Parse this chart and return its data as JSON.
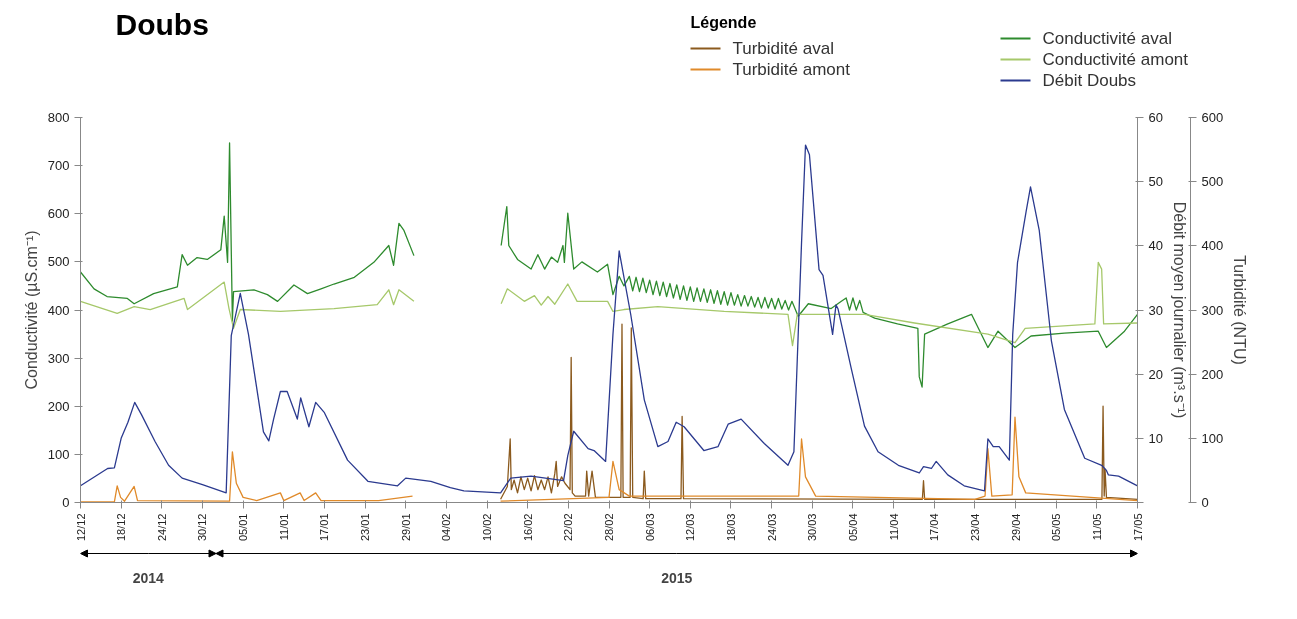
{
  "chart_data": {
    "type": "line",
    "title": "Doubs",
    "legend_title": "Légende",
    "ylabel": "Conductivité (µS.cm⁻¹)",
    "y2label": "Débit moyen journalier (m³.s⁻¹)",
    "y3label": "Turbidité (NTU)",
    "xlim": [
      "2014-12-12",
      "2015-05-17"
    ],
    "xticks": [
      {
        "value": "2014-12-12",
        "label": "12/12"
      },
      {
        "value": "2014-12-18",
        "label": "18/12"
      },
      {
        "value": "2014-12-24",
        "label": "24/12"
      },
      {
        "value": "2014-12-30",
        "label": "30/12"
      },
      {
        "value": "2015-01-05",
        "label": "05/01"
      },
      {
        "value": "2015-01-11",
        "label": "11/01"
      },
      {
        "value": "2015-01-17",
        "label": "17/01"
      },
      {
        "value": "2015-01-23",
        "label": "23/01"
      },
      {
        "value": "2015-01-29",
        "label": "29/01"
      },
      {
        "value": "2015-02-04",
        "label": "04/02"
      },
      {
        "value": "2015-02-10",
        "label": "10/02"
      },
      {
        "value": "2015-02-16",
        "label": "16/02"
      },
      {
        "value": "2015-02-22",
        "label": "22/02"
      },
      {
        "value": "2015-02-28",
        "label": "28/02"
      },
      {
        "value": "2015-03-06",
        "label": "06/03"
      },
      {
        "value": "2015-03-12",
        "label": "12/03"
      },
      {
        "value": "2015-03-18",
        "label": "18/03"
      },
      {
        "value": "2015-03-24",
        "label": "24/03"
      },
      {
        "value": "2015-03-30",
        "label": "30/03"
      },
      {
        "value": "2015-04-05",
        "label": "05/04"
      },
      {
        "value": "2015-04-11",
        "label": "11/04"
      },
      {
        "value": "2015-04-17",
        "label": "17/04"
      },
      {
        "value": "2015-04-23",
        "label": "23/04"
      },
      {
        "value": "2015-04-29",
        "label": "29/04"
      },
      {
        "value": "2015-05-05",
        "label": "05/05"
      },
      {
        "value": "2015-05-11",
        "label": "11/05"
      },
      {
        "value": "2015-05-17",
        "label": "17/05"
      }
    ],
    "ylim": [
      0,
      800
    ],
    "yticks": [
      0,
      100,
      200,
      300,
      400,
      500,
      600,
      700,
      800
    ],
    "y2lim": [
      0,
      60
    ],
    "y2ticks": [
      {
        "value": 0,
        "label": null
      },
      10,
      20,
      30,
      40,
      50,
      60
    ],
    "y3lim": [
      0,
      600
    ],
    "y3ticks": [
      0,
      100,
      200,
      300,
      400,
      500,
      600
    ],
    "grid": false,
    "legend": "top",
    "marker": "none",
    "line_style": "solid",
    "annotations": [
      "2014",
      "2015"
    ],
    "series": [
      {
        "name": "Turbidité aval",
        "color": "#8b5a1e",
        "axis": "y3",
        "x": [
          "2015-02-12",
          "2015-02-13",
          "2015-02-13T10:00",
          "2015-02-13T14:00",
          "2015-02-14",
          "2015-02-14T12:00",
          "2015-02-15",
          "2015-02-15T12:00",
          "2015-02-16",
          "2015-02-16T12:00",
          "2015-02-17",
          "2015-02-17T12:00",
          "2015-02-18",
          "2015-02-18T12:00",
          "2015-02-19",
          "2015-02-19T12:00",
          "2015-02-20",
          "2015-02-20T05:00",
          "2015-02-20T10:00",
          "2015-02-21",
          "2015-02-21T12:00",
          "2015-02-22T06:00",
          "2015-02-22T10:00",
          "2015-02-22T14:00",
          "2015-02-23",
          "2015-02-24T13:00",
          "2015-02-24T17:00",
          "2015-02-25",
          "2015-02-25T12:00",
          "2015-02-26",
          "2015-03-01T18:00",
          "2015-03-01T22:00",
          "2015-03-02T02:00",
          "2015-03-03T03:00",
          "2015-03-03T07:00",
          "2015-03-03T12:00",
          "2015-03-05T01:00",
          "2015-03-05T05:00",
          "2015-03-05T10:00",
          "2015-03-10T15:00",
          "2015-03-10T19:00",
          "2015-03-11",
          "2015-04-15T06:00",
          "2015-04-15T10:00",
          "2015-04-15T14:00",
          "2015-05-11T18:00",
          "2015-05-11T22:00",
          "2015-05-12T02:00",
          "2015-05-12T05:00",
          "2015-05-12T10:00",
          "2015-05-17"
        ],
        "values": [
          5,
          25,
          99,
          20,
          35,
          15,
          40,
          20,
          38,
          18,
          42,
          20,
          35,
          20,
          40,
          15,
          45,
          64,
          25,
          40,
          30,
          20,
          226,
          15,
          10,
          10,
          49,
          10,
          49,
          8,
          8,
          278,
          8,
          8,
          272,
          8,
          6,
          49,
          6,
          6,
          134,
          6,
          5,
          34,
          5,
          5,
          150,
          10,
          52,
          8,
          5
        ]
      },
      {
        "name": "Turbidité amont",
        "color": "#e08a2a",
        "axis": "y3",
        "x": [
          "2014-12-12",
          "2014-12-17",
          "2014-12-17T10:00",
          "2014-12-17T22:00",
          "2014-12-18T12:00",
          "2014-12-19T22:00",
          "2014-12-20T10:00",
          "2015-01-03",
          "2015-01-03T10:00",
          "2015-01-04",
          "2015-01-05",
          "2015-01-07",
          "2015-01-10T12:00",
          "2015-01-11",
          "2015-01-13T10:00",
          "2015-01-14",
          "2015-01-15T17:00",
          "2015-01-16T12:00",
          "2015-01-25",
          "2015-01-30",
          "2015-02-05",
          "2015-02-12",
          "2015-02-28",
          "2015-02-28T14:00",
          "2015-03-01T12:00",
          "2015-03-03",
          "2015-03-28",
          "2015-03-28T10:00",
          "2015-03-29",
          "2015-03-30T12:00",
          "2015-04-23",
          "2015-04-24T12:00",
          "2015-04-24T22:00",
          "2015-04-25T12:00",
          "2015-04-28T12:00",
          "2015-04-28T22:00",
          "2015-04-29T12:00",
          "2015-04-30T12:00",
          "2015-05-17"
        ],
        "values": [
          1,
          1,
          26,
          8,
          2,
          25,
          3,
          2,
          79,
          30,
          8,
          3,
          15,
          3,
          15,
          3,
          15,
          3,
          3,
          10,
          null,
          2,
          8,
          64,
          20,
          10,
          10,
          99,
          40,
          10,
          5,
          10,
          84,
          10,
          12,
          133,
          40,
          15,
          3
        ]
      },
      {
        "name": "Conductivité aval",
        "color": "#2e8b2e",
        "x": [
          "2014-12-12",
          "2014-12-14",
          "2014-12-15T22:00",
          "2014-12-18T22:00",
          "2014-12-19T22:00",
          "2014-12-22T19:00",
          "2014-12-26T07:00",
          "2014-12-27",
          "2014-12-27T19:00",
          "2014-12-29T05:00",
          "2014-12-30T17:00",
          "2015-01-01T17:00",
          "2015-01-02T05:00",
          "2015-01-02T17:00",
          "2015-01-03",
          "2015-01-03T10:00",
          "2015-01-03T14:00",
          "2015-01-06T14:00",
          "2015-01-08T14:00",
          "2015-01-10T02:00",
          "2015-01-12T12:00",
          "2015-01-14T12:00",
          "2015-01-16T12:00",
          "2015-01-18T10:00",
          "2015-01-21T10:00",
          "2015-01-24T07:00",
          "2015-01-26T12:00",
          "2015-01-27T05:00",
          "2015-01-28",
          "2015-01-28T17:00",
          "2015-01-30T05:00",
          "2015-02-05",
          "2015-02-12T02:00",
          "2015-02-12T22:00",
          "2015-02-13T05:00",
          "2015-02-14T12:00",
          "2015-02-16T12:00",
          "2015-02-17T12:00",
          "2015-02-18T12:00",
          "2015-02-19T12:00",
          "2015-02-20T10:00",
          "2015-02-21T05:00",
          "2015-02-21T10:00",
          "2015-02-21T22:00",
          "2015-02-22T19:00",
          "2015-02-24",
          "2015-02-26T07:00",
          "2015-02-27T19:00",
          "2015-02-28T14:00",
          "2015-03-01T12:00",
          "2015-03-02T05:00",
          "2015-03-03",
          "2015-03-03T12:00",
          "2015-03-04",
          "2015-03-04T12:00",
          "2015-03-05",
          "2015-03-05T12:00",
          "2015-03-06",
          "2015-03-06T12:00",
          "2015-03-07",
          "2015-03-07T12:00",
          "2015-03-08",
          "2015-03-08T12:00",
          "2015-03-09",
          "2015-03-09T12:00",
          "2015-03-10",
          "2015-03-10T12:00",
          "2015-03-11",
          "2015-03-11T12:00",
          "2015-03-12",
          "2015-03-12T12:00",
          "2015-03-13",
          "2015-03-13T12:00",
          "2015-03-14",
          "2015-03-14T12:00",
          "2015-03-15",
          "2015-03-15T12:00",
          "2015-03-16",
          "2015-03-16T12:00",
          "2015-03-17",
          "2015-03-17T12:00",
          "2015-03-18",
          "2015-03-18T12:00",
          "2015-03-19",
          "2015-03-19T12:00",
          "2015-03-20",
          "2015-03-20T12:00",
          "2015-03-21",
          "2015-03-21T12:00",
          "2015-03-22",
          "2015-03-22T12:00",
          "2015-03-23",
          "2015-03-23T12:00",
          "2015-03-24",
          "2015-03-24T12:00",
          "2015-03-25",
          "2015-03-25T12:00",
          "2015-03-26",
          "2015-03-26T12:00",
          "2015-03-27",
          "2015-03-27T22:00",
          "2015-03-29T10:00",
          "2015-04-01T19:00",
          "2015-04-03T07:00",
          "2015-04-04",
          "2015-04-04T12:00",
          "2015-04-05",
          "2015-04-05T12:00",
          "2015-04-06",
          "2015-04-06T12:00",
          "2015-04-08T05:00",
          "2015-04-11T14:00",
          "2015-04-14T14:00",
          "2015-04-14T19:00",
          "2015-04-15T05:00",
          "2015-04-15T14:00",
          "2015-04-19",
          "2015-04-22T12:00",
          "2015-04-24T22:00",
          "2015-04-26T10:00",
          "2015-04-28T22:00",
          "2015-05-01T07:00",
          "2015-05-06T05:00",
          "2015-05-11T05:00",
          "2015-05-12T10:00",
          "2015-05-15T02:00",
          "2015-05-17"
        ],
        "values": [
          479,
          444,
          428,
          424,
          413,
          434,
          448,
          515,
          493,
          509,
          505,
          525,
          595,
          499,
          747,
          377,
          438,
          442,
          432,
          418,
          452,
          434,
          444,
          454,
          468,
          499,
          534,
          493,
          580,
          566,
          513,
          null,
          534,
          615,
          534,
          505,
          485,
          515,
          485,
          510,
          499,
          534,
          499,
          601,
          485,
          500,
          479,
          495,
          432,
          470,
          450,
          470,
          440,
          468,
          438,
          466,
          436,
          462,
          432,
          460,
          430,
          458,
          428,
          455,
          425,
          452,
          422,
          450,
          420,
          448,
          418,
          446,
          418,
          444,
          416,
          442,
          414,
          440,
          412,
          438,
          410,
          436,
          410,
          432,
          408,
          430,
          408,
          428,
          406,
          426,
          404,
          426,
          404,
          424,
          402,
          424,
          402,
          420,
          400,
          418,
          387,
          413,
          403,
          418,
          425,
          400,
          425,
          400,
          420,
          395,
          383,
          371,
          362,
          261,
          240,
          350,
          371,
          391,
          322,
          356,
          322,
          346,
          352,
          356,
          322,
          356,
          391
        ]
      },
      {
        "name": "Conductivité amont",
        "color": "#a6c86a",
        "x": [
          "2014-12-12",
          "2014-12-17T10:00",
          "2014-12-19T22:00",
          "2014-12-22T07:00",
          "2014-12-27T07:00",
          "2014-12-27T19:00",
          "2015-01-02T05:00",
          "2015-01-02T22:00",
          "2015-01-03T14:00",
          "2015-01-04T14:00",
          "2015-01-10T12:00",
          "2015-01-18T10:00",
          "2015-01-24T19:00",
          "2015-01-26T12:00",
          "2015-01-27T05:00",
          "2015-01-28",
          "2015-01-30T05:00",
          "2015-02-05",
          "2015-02-12T02:00",
          "2015-02-13",
          "2015-02-15T12:00",
          "2015-02-17",
          "2015-02-18",
          "2015-02-19",
          "2015-02-20",
          "2015-02-21T22:00",
          "2015-02-23T07:00",
          "2015-02-27T19:00",
          "2015-02-28T14:00",
          "2015-03-02T05:00",
          "2015-03-07T05:00",
          "2015-03-17",
          "2015-03-26T10:00",
          "2015-03-27T02:00",
          "2015-03-27T19:00",
          "2015-04-03T05:00",
          "2015-04-06T17:00",
          "2015-04-14T02:00",
          "2015-04-24T22:00",
          "2015-04-28T22:00",
          "2015-04-30T10:00",
          "2015-05-10T17:00",
          "2015-05-11T05:00",
          "2015-05-11T17:00",
          "2015-05-12",
          "2015-05-17"
        ],
        "values": [
          418,
          393,
          407,
          401,
          424,
          401,
          458,
          403,
          362,
          401,
          397,
          403,
          411,
          442,
          411,
          442,
          418,
          null,
          413,
          444,
          418,
          430,
          410,
          428,
          412,
          454,
          418,
          418,
          397,
          401,
          407,
          397,
          391,
          326,
          391,
          391,
          391,
          373,
          350,
          332,
          362,
          371,
          499,
          485,
          371,
          373
        ]
      },
      {
        "name": "Débit Doubs",
        "color": "#2b3a8f",
        "axis": "y2",
        "x": [
          "2014-12-12",
          "2014-12-16",
          "2014-12-17",
          "2014-12-18",
          "2014-12-19",
          "2014-12-20",
          "2014-12-21",
          "2014-12-23",
          "2014-12-25",
          "2014-12-27",
          "2014-12-30",
          "2015-01-02T12:00",
          "2015-01-03T06:00",
          "2015-01-04T14:00",
          "2015-01-05T19:00",
          "2015-01-08",
          "2015-01-08T19:00",
          "2015-01-09T12:00",
          "2015-01-10T12:00",
          "2015-01-11T12:00",
          "2015-01-13",
          "2015-01-13T12:00",
          "2015-01-14T17:00",
          "2015-01-15T17:00",
          "2015-01-17",
          "2015-01-20T10:00",
          "2015-01-23T10:00",
          "2015-01-27T19:00",
          "2015-01-29",
          "2015-02-01T17:00",
          "2015-02-04T14:00",
          "2015-02-06T14:00",
          "2015-02-12",
          "2015-02-13T12:00",
          "2015-02-16T12:00",
          "2015-02-21T07:00",
          "2015-02-21T22:00",
          "2015-02-22T19:00",
          "2015-02-24T22:00",
          "2015-02-25T19:00",
          "2015-02-27T12:00",
          "2015-02-28T14:00",
          "2015-03-01T12:00",
          "2015-03-03T05:00",
          "2015-03-05T05:00",
          "2015-03-07T05:00",
          "2015-03-08T17:00",
          "2015-03-09T22:00",
          "2015-03-11T02:00",
          "2015-03-14",
          "2015-03-16T02:00",
          "2015-03-17T14:00",
          "2015-03-19T12:00",
          "2015-03-22T22:00",
          "2015-03-26T10:00",
          "2015-03-27T07:00",
          "2015-03-28T10:00",
          "2015-03-29",
          "2015-03-29T14:00",
          "2015-03-31",
          "2015-03-31T14:00",
          "2015-04-02",
          "2015-04-02T12:00",
          "2015-04-02T19:00",
          "2015-04-04T17:00",
          "2015-04-06T17:00",
          "2015-04-08T17:00",
          "2015-04-11T17:00",
          "2015-04-14T19:00",
          "2015-04-15T10:00",
          "2015-04-16T14:00",
          "2015-04-17T07:00",
          "2015-04-19",
          "2015-04-21T10:00",
          "2015-04-24T10:00",
          "2015-04-24T22:00",
          "2015-04-25T17:00",
          "2015-04-26T14:00",
          "2015-04-28T02:00",
          "2015-04-28T14:00",
          "2015-04-29T07:00",
          "2015-04-30T14:00",
          "2015-05-01T05:00",
          "2015-05-02T12:00",
          "2015-05-04T07:00",
          "2015-05-06T05:00",
          "2015-05-09T05:00",
          "2015-05-11T17:00",
          "2015-05-12T10:00",
          "2015-05-12T17:00",
          "2015-05-14T05:00",
          "2015-05-17"
        ],
        "values": [
          2.6,
          5.3,
          5.4,
          10,
          12.5,
          15.6,
          13.7,
          9.5,
          5.8,
          3.8,
          2.8,
          1.5,
          26,
          32.6,
          26.2,
          11,
          9.6,
          13,
          17.3,
          17.3,
          13,
          16.3,
          11.8,
          15.6,
          14,
          6.6,
          3.3,
          2.6,
          3.8,
          3.3,
          2.3,
          1.8,
          1.5,
          3.8,
          4.1,
          3.4,
          7.3,
          11.1,
          8.4,
          8.1,
          6.4,
          26.2,
          39.2,
          29.3,
          16,
          8.7,
          9.5,
          12.5,
          11.8,
          8.1,
          8.7,
          12.2,
          13,
          9.2,
          5.8,
          7.9,
          40.5,
          55.7,
          54.2,
          36.3,
          35.4,
          26.2,
          30.8,
          30.2,
          21.1,
          11.9,
          7.9,
          5.8,
          4.6,
          5.6,
          5.3,
          6.4,
          4.3,
          2.6,
          1.8,
          9.9,
          8.7,
          8.7,
          6.6,
          26.2,
          37.4,
          45.5,
          49.2,
          42.4,
          25.2,
          14.5,
          6.9,
          5.8,
          5,
          4.3,
          4.1,
          2.6
        ]
      }
    ]
  }
}
